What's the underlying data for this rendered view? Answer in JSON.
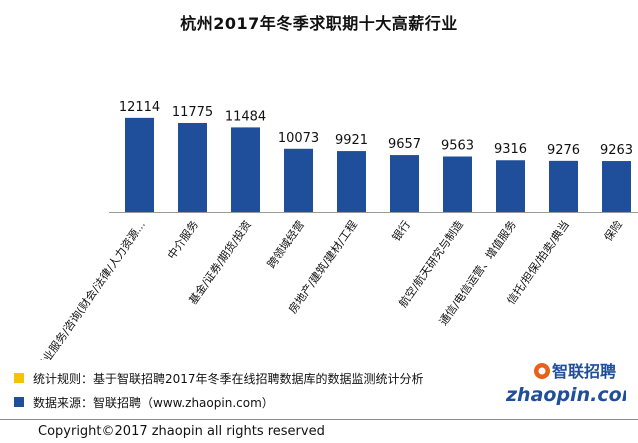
{
  "page_title": "杭州2017年冬季求职期十大高薪行业",
  "chart_data": {
    "type": "bar",
    "title": "杭州2017年冬季求职期十大高薪行业",
    "categories": [
      "专业服务/咨询(财会/法律/人力资源...",
      "中介服务",
      "基金/证券/期货/投资",
      "跨领域经营",
      "房地产/建筑/建材/工程",
      "银行",
      "航空/航天研究与制造",
      "通信/电信运营、增值服务",
      "信托/担保/拍卖/典当",
      "保险"
    ],
    "series": [
      {
        "values": [
          12114,
          11775,
          11484,
          10073,
          9921,
          9657,
          9563,
          9316,
          9276,
          9263
        ]
      }
    ],
    "data_labels": [
      "12114",
      "11775",
      "11484",
      "10073",
      "9921",
      "9657",
      "9563",
      "9316",
      "9276",
      "9263"
    ],
    "bar_color": "#1f4e9a",
    "ylim": [
      5900,
      12500
    ],
    "grid": false
  },
  "legend": {
    "rule_label": "统计规则：基于智联招聘2017年冬季在线招聘数据库的数据监测统计分析",
    "rule_color": "#f5c400",
    "source_label": "数据来源：智联招聘（www.zhaopin.com）",
    "source_color": "#1f4e9a"
  },
  "logo": {
    "brand_cn": "智联招聘",
    "brand_en": "zhaopin.com",
    "icon": "zhaopin-logo-icon"
  },
  "footer": {
    "copyright": "Copyright©2017 zhaopin all rights reserved"
  }
}
